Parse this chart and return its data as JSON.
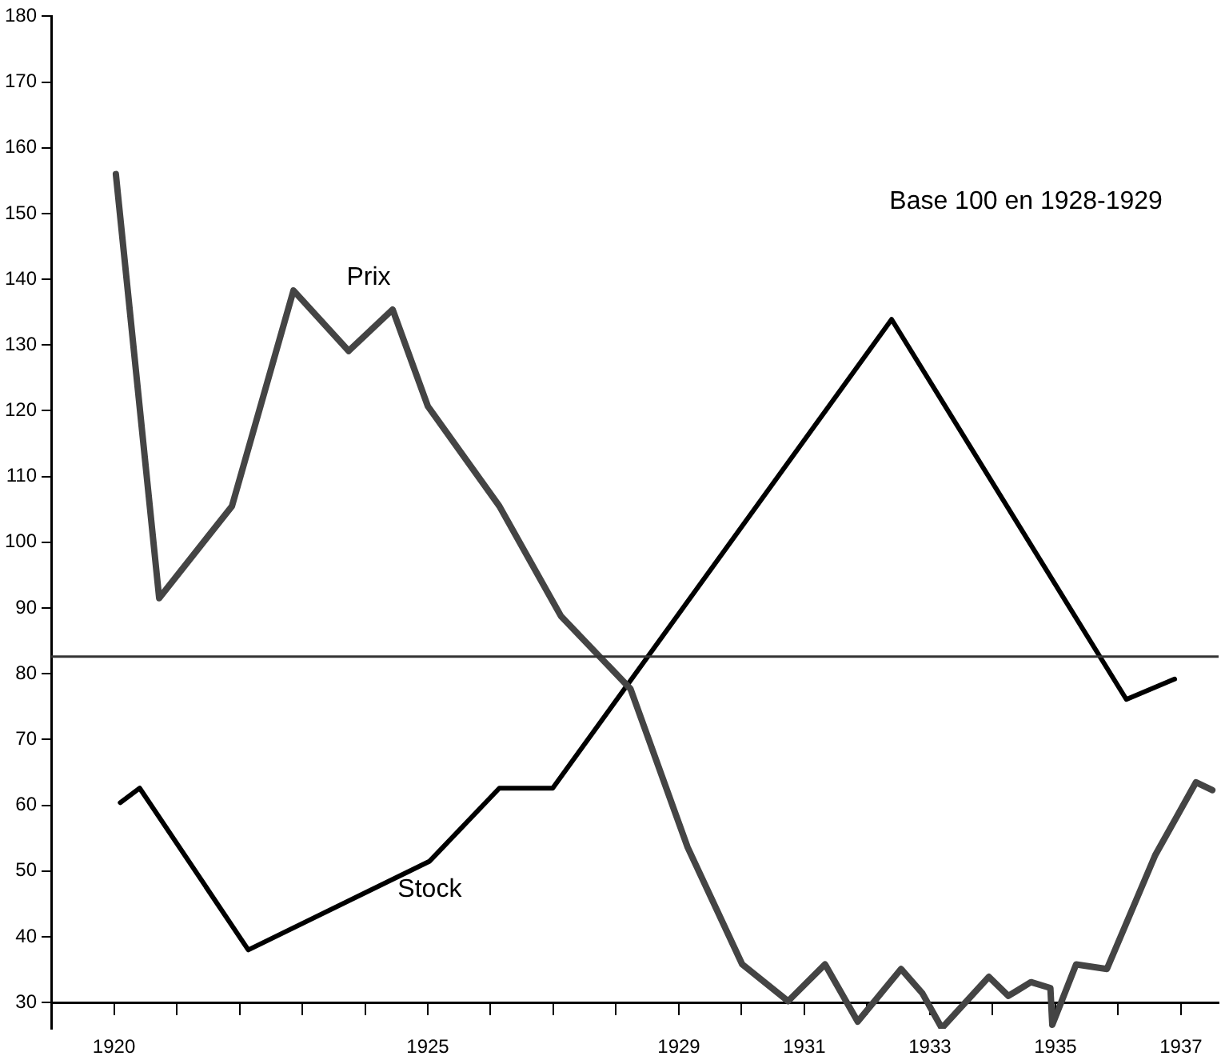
{
  "chart_data": {
    "type": "line",
    "annotations": [
      "Base 100 en 1928-1929"
    ],
    "xlim": [
      1919,
      1937.6
    ],
    "xticks": [
      {
        "value": 1920,
        "label": "1920"
      },
      {
        "value": 1921,
        "label": null
      },
      {
        "value": 1922,
        "label": null
      },
      {
        "value": 1923,
        "label": null
      },
      {
        "value": 1924,
        "label": null
      },
      {
        "value": 1925,
        "label": "1925"
      },
      {
        "value": 1926,
        "label": null
      },
      {
        "value": 1927,
        "label": null
      },
      {
        "value": 1928,
        "label": null
      },
      {
        "value": 1929,
        "label": "1929"
      },
      {
        "value": 1930,
        "label": null
      },
      {
        "value": 1931,
        "label": "1931"
      },
      {
        "value": 1932,
        "label": null
      },
      {
        "value": 1933,
        "label": "1933"
      },
      {
        "value": 1934,
        "label": null
      },
      {
        "value": 1935,
        "label": "1935"
      },
      {
        "value": 1936,
        "label": null
      },
      {
        "value": 1937,
        "label": "1937"
      }
    ],
    "ylim": [
      26,
      180
    ],
    "yticks": [
      30,
      40,
      50,
      60,
      70,
      80,
      90,
      100,
      110,
      120,
      130,
      140,
      150,
      160,
      170,
      180
    ],
    "grid": false,
    "legend": false,
    "marker": "none",
    "line_style": "solid",
    "ref_lines": [
      {
        "axis": "y",
        "value": 82.6,
        "color": "#333333"
      }
    ],
    "series": [
      {
        "name": "Prix",
        "color": "#444444",
        "x": [
          1920.03,
          1920.72,
          1921.88,
          1922.86,
          1923.74,
          1924.44,
          1925.0,
          1926.14,
          1927.12,
          1928.23,
          1929.14,
          1930.01,
          1930.74,
          1931.33,
          1931.85,
          1932.54,
          1932.88,
          1933.19,
          1933.94,
          1934.25,
          1934.61,
          1934.92,
          1934.95,
          1935.33,
          1935.82,
          1936.59,
          1937.24,
          1937.5
        ],
        "values": [
          156,
          91.5,
          105.5,
          138.3,
          129.1,
          135.4,
          120.7,
          105.5,
          88.8,
          77.7,
          53.6,
          35.8,
          30.2,
          35.8,
          27.1,
          35.1,
          31.4,
          26.1,
          33.9,
          31,
          33.1,
          32.2,
          26.6,
          35.8,
          35.1,
          52.4,
          63.5,
          62.3
        ]
      },
      {
        "name": "Stock",
        "color": "#000000",
        "x": [
          1920.1,
          1920.41,
          1922.14,
          1925.03,
          1926.14,
          1926.99,
          1932.39,
          1936.13,
          1936.9
        ],
        "values": [
          60.4,
          62.6,
          38,
          51.5,
          62.6,
          62.6,
          133.9,
          76.1,
          79.2
        ]
      }
    ]
  }
}
